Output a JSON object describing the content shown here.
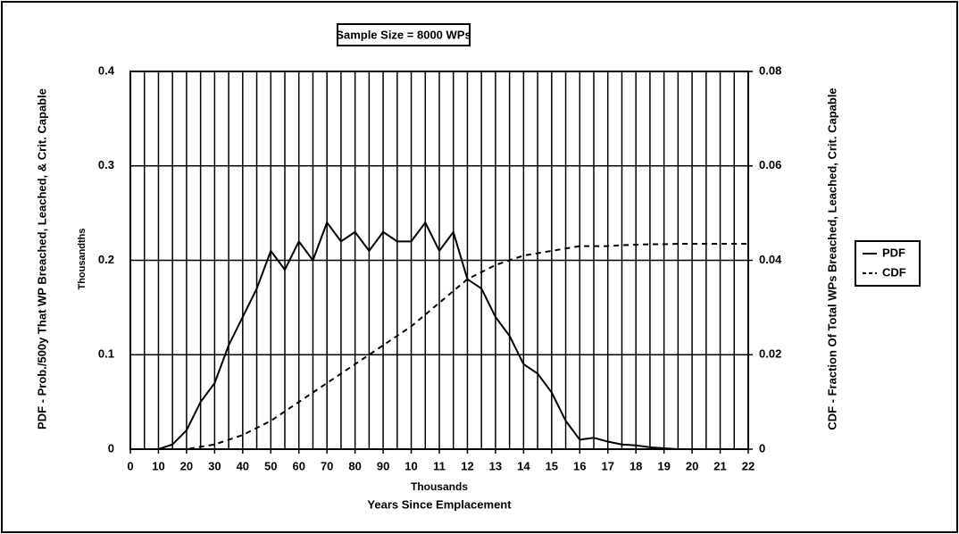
{
  "chart_data": {
    "type": "line",
    "title": "Sample Size = 8000 WPs",
    "y_label": "PDF - Prob./500y That WP Breached, Leached, & Crit. Capable",
    "y_unit_label": "Thousandths",
    "y2_label": "CDF - Fraction Of Total WPs Breached, Leached, Crit. Capable",
    "x_unit_label": "Thousands",
    "x_label": "Years Since Emplacement",
    "x": [
      0,
      5,
      10,
      15,
      20,
      25,
      30,
      35,
      40,
      45,
      50,
      55,
      60,
      65,
      70,
      75,
      80,
      85,
      90,
      95,
      100,
      105,
      110,
      115,
      120,
      125,
      130,
      135,
      140,
      145,
      150,
      155,
      160,
      165,
      170,
      175,
      180,
      185,
      190,
      195,
      200,
      205,
      210,
      215,
      220
    ],
    "series": [
      {
        "name": "PDF",
        "color": "#000000",
        "dashed": false,
        "values": [
          0,
          0,
          0,
          0.005,
          0.02,
          0.05,
          0.07,
          0.11,
          0.14,
          0.17,
          0.21,
          0.19,
          0.22,
          0.2,
          0.24,
          0.22,
          0.23,
          0.21,
          0.23,
          0.22,
          0.22,
          0.24,
          0.21,
          0.23,
          0.18,
          0.17,
          0.14,
          0.12,
          0.09,
          0.08,
          0.06,
          0.03,
          0.01,
          0.012,
          0.008,
          0.005,
          0.004,
          0.002,
          0.001,
          0,
          0,
          0,
          0,
          0,
          0
        ]
      },
      {
        "name": "CDF",
        "color": "#000000",
        "dashed": true,
        "axis": "y2",
        "values": [
          0,
          0,
          0,
          0,
          0,
          0.0005,
          0.001,
          0.002,
          0.003,
          0.0045,
          0.006,
          0.008,
          0.01,
          0.012,
          0.014,
          0.016,
          0.018,
          0.02,
          0.022,
          0.024,
          0.026,
          0.0285,
          0.031,
          0.0335,
          0.036,
          0.0375,
          0.039,
          0.04,
          0.041,
          0.0415,
          0.042,
          0.0425,
          0.043,
          0.043,
          0.043,
          0.0432,
          0.0433,
          0.0434,
          0.0434,
          0.0435,
          0.0435,
          0.0435,
          0.0435,
          0.0435,
          0.0435
        ]
      }
    ],
    "xlim": [
      0,
      220
    ],
    "xticks": [
      0,
      10,
      20,
      30,
      40,
      50,
      60,
      70,
      80,
      90,
      {
        "value": 100,
        "label": "10"
      },
      {
        "value": 110,
        "label": "11"
      },
      {
        "value": 120,
        "label": "12"
      },
      {
        "value": 130,
        "label": "13"
      },
      {
        "value": 140,
        "label": "14"
      },
      {
        "value": 150,
        "label": "15"
      },
      {
        "value": 160,
        "label": "16"
      },
      {
        "value": 170,
        "label": "17"
      },
      {
        "value": 180,
        "label": "18"
      },
      {
        "value": 190,
        "label": "19"
      },
      {
        "value": 200,
        "label": "20"
      },
      {
        "value": 210,
        "label": "21"
      },
      {
        "value": 220,
        "label": "22"
      }
    ],
    "xminorticks": [
      0,
      5,
      10,
      15,
      20,
      25,
      30,
      35,
      40,
      45,
      50,
      55,
      60,
      65,
      70,
      75,
      80,
      85,
      90,
      95,
      100,
      105,
      110,
      115,
      120,
      125,
      130,
      135,
      140,
      145,
      150,
      155,
      160,
      165,
      170,
      175,
      180,
      185,
      190,
      195,
      200,
      205,
      210,
      215,
      220
    ],
    "ylim": [
      0,
      0.4
    ],
    "yticks": [
      0,
      0.1,
      0.2,
      0.3,
      0.4
    ],
    "y2lim": [
      0,
      0.08
    ],
    "y2ticks": [
      0,
      0.02,
      0.04,
      0.06,
      0.08
    ],
    "grid": true,
    "legend": "right"
  }
}
